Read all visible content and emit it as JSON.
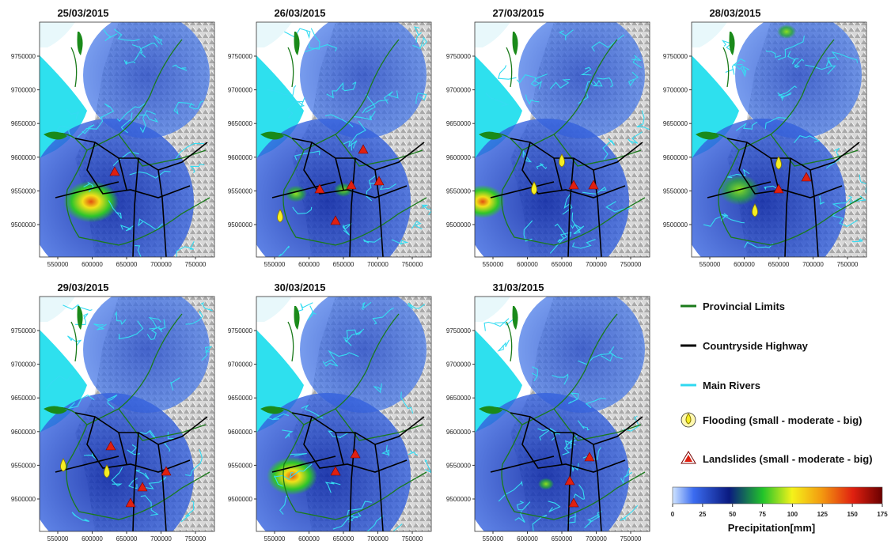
{
  "panels": [
    {
      "date": "25/03/2015"
    },
    {
      "date": "26/03/2015"
    },
    {
      "date": "27/03/2015"
    },
    {
      "date": "28/03/2015"
    },
    {
      "date": "29/03/2015"
    },
    {
      "date": "30/03/2015"
    },
    {
      "date": "31/03/2015"
    }
  ],
  "axes": {
    "xticks": [
      550000,
      600000,
      650000,
      700000,
      750000
    ],
    "yticks": [
      9500000,
      9550000,
      9600000,
      9650000,
      9700000,
      9750000
    ]
  },
  "legend": {
    "items": [
      {
        "label": "Provincial Limits",
        "color": "#1a7a1a"
      },
      {
        "label": "Countryside Highway",
        "color": "#000000"
      },
      {
        "label": "Main Rivers",
        "color": "#2fd8f0"
      },
      {
        "label": "Flooding (small - moderate - big)"
      },
      {
        "label": "Landslides (small - moderate - big)"
      }
    ]
  },
  "colorbar": {
    "ticks": [
      0,
      25,
      50,
      75,
      100,
      125,
      150,
      175
    ],
    "label": "Precipitation[mm]"
  }
}
